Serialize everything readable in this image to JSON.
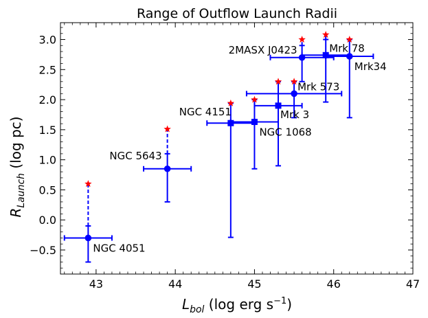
{
  "chart_data": {
    "type": "scatter",
    "title": "Range of Outflow Launch Radii",
    "xlabel": {
      "main": "L",
      "sub": "bol",
      "rest": " (log erg s",
      "sup": "−1",
      "close": ")"
    },
    "ylabel": {
      "main": "R",
      "sub": "Launch",
      "rest": " (log pc)"
    },
    "xlim": [
      42.55,
      47.0
    ],
    "ylim": [
      -0.9,
      3.28
    ],
    "xticks": [
      43,
      44,
      45,
      46,
      47
    ],
    "xtick_labels": [
      "43",
      "44",
      "45",
      "46",
      "47"
    ],
    "yticks": [
      -0.5,
      0.0,
      0.5,
      1.0,
      1.5,
      2.0,
      2.5,
      3.0
    ],
    "ytick_labels": [
      "−0.5",
      "0.0",
      "0.5",
      "1.0",
      "1.5",
      "2.0",
      "2.5",
      "3.0"
    ],
    "colors": {
      "series": "#0000ff",
      "upper_limit": "#ff0000",
      "axes": "#000000"
    },
    "objects": [
      {
        "name": "NGC 4051",
        "x": 42.9,
        "xerr": [
          0.3,
          0.3
        ],
        "y": -0.3,
        "yerr": [
          0.4,
          0.2
        ],
        "marker": "circle",
        "limit": 0.6,
        "limit_dashed": true,
        "label": "NGC 4051",
        "label_pos": "right-below"
      },
      {
        "name": "NGC 5643",
        "x": 43.9,
        "xerr": [
          0.3,
          0.3
        ],
        "y": 0.85,
        "yerr": [
          0.55,
          0.25
        ],
        "marker": "circle",
        "limit": 1.51,
        "limit_dashed": true,
        "label": "NGC 5643",
        "label_pos": "left-above"
      },
      {
        "name": "NGC 4151",
        "x": 44.7,
        "xerr": [
          0.3,
          0.3
        ],
        "y": 1.61,
        "yerr": [
          1.9,
          0.33
        ],
        "marker": "square",
        "limit": 1.94,
        "limit_dashed": false,
        "label": "NGC 4151",
        "label_pos": "left-above"
      },
      {
        "name": "NGC 1068",
        "x": 45.0,
        "xerr": [
          0.3,
          0.3
        ],
        "y": 1.63,
        "yerr": [
          0.78,
          0.37
        ],
        "marker": "square",
        "limit": 2.0,
        "limit_dashed": false,
        "label": "NGC 1068",
        "label_pos": "right-below"
      },
      {
        "name": "Mrk 3",
        "x": 45.3,
        "xerr": [
          0.3,
          0.3
        ],
        "y": 1.9,
        "yerr": [
          1.0,
          0.4
        ],
        "marker": "square",
        "limit": 2.3,
        "limit_dashed": false,
        "label": "Mrk 3",
        "label_pos": "right-below"
      },
      {
        "name": "Mrk 573",
        "x": 45.5,
        "xerr": [
          0.6,
          0.6
        ],
        "y": 2.1,
        "yerr": [
          0.4,
          0.2
        ],
        "marker": "circle",
        "limit": 2.3,
        "limit_dashed": true,
        "label": "Mrk 573",
        "label_pos": "right-above"
      },
      {
        "name": "2MASX J0423",
        "x": 45.6,
        "xerr": [
          0.4,
          0.4
        ],
        "y": 2.7,
        "yerr": [
          0.4,
          0.2
        ],
        "marker": "circle",
        "limit": 3.0,
        "limit_dashed": true,
        "label": "2MASX J0423",
        "label_pos": "left-above"
      },
      {
        "name": "Mrk 78",
        "x": 45.9,
        "xerr": [
          0.3,
          0.3
        ],
        "y": 2.74,
        "yerr": [
          0.78,
          0.26
        ],
        "marker": "square",
        "limit": 3.08,
        "limit_dashed": false,
        "label": "Mrk 78",
        "label_pos": "right-above"
      },
      {
        "name": "Mrk34",
        "x": 46.2,
        "xerr": [
          0.3,
          0.3
        ],
        "y": 2.72,
        "yerr": [
          1.02,
          0.28
        ],
        "marker": "circle",
        "limit": 3.0,
        "limit_dashed": false,
        "label": "Mrk34",
        "label_pos": "right-below"
      }
    ]
  }
}
